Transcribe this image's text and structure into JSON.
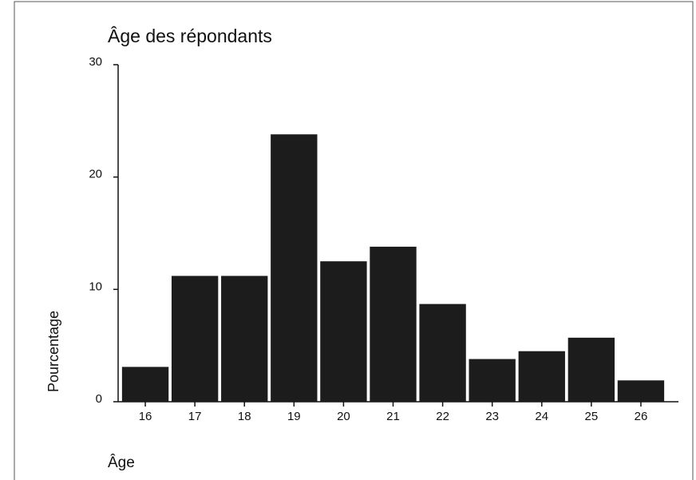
{
  "chart_data": {
    "type": "bar",
    "title": "Âge des répondants",
    "x_label": "Âge",
    "y_label": "Pourcentage",
    "categories": [
      "16",
      "17",
      "18",
      "19",
      "20",
      "21",
      "22",
      "23",
      "24",
      "25",
      "26"
    ],
    "values": [
      3.1,
      11.2,
      11.2,
      23.8,
      12.5,
      13.8,
      8.7,
      3.8,
      4.5,
      5.7,
      1.9
    ],
    "color": "#1c1c1c",
    "ylim": [
      0,
      30
    ],
    "yticks": [
      0,
      10,
      20,
      30
    ],
    "grid": false
  }
}
